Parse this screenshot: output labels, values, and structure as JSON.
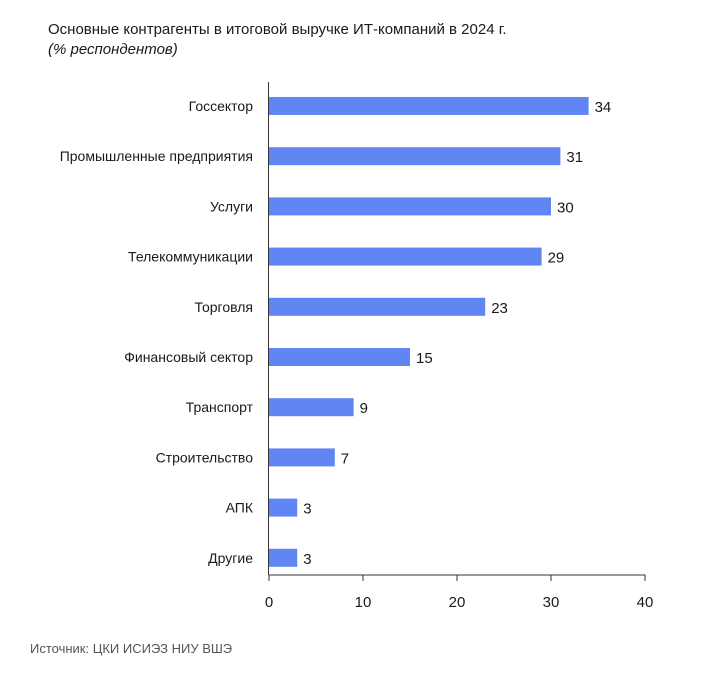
{
  "chart_data": {
    "type": "bar",
    "orientation": "horizontal",
    "title": "Основные контрагенты в итоговой выручке ИТ-компаний в 2024 г.",
    "subtitle": "(% респондентов)",
    "categories": [
      "Госсектор",
      "Промышленные предприятия",
      "Услуги",
      "Телекоммуникации",
      "Торговля",
      "Финансовый сектор",
      "Транспорт",
      "Строительство",
      "АПК",
      "Другие"
    ],
    "values": [
      34,
      31,
      30,
      29,
      23,
      15,
      9,
      7,
      3,
      3
    ],
    "xlim": [
      0,
      40
    ],
    "xticks": [
      0,
      10,
      20,
      30,
      40
    ],
    "xlabel": "",
    "ylabel": "",
    "grid": false,
    "bar_color": "#6185F2",
    "data_labels": true
  },
  "source": "Источник: ЦКИ ИСИЭЗ НИУ ВШЭ"
}
